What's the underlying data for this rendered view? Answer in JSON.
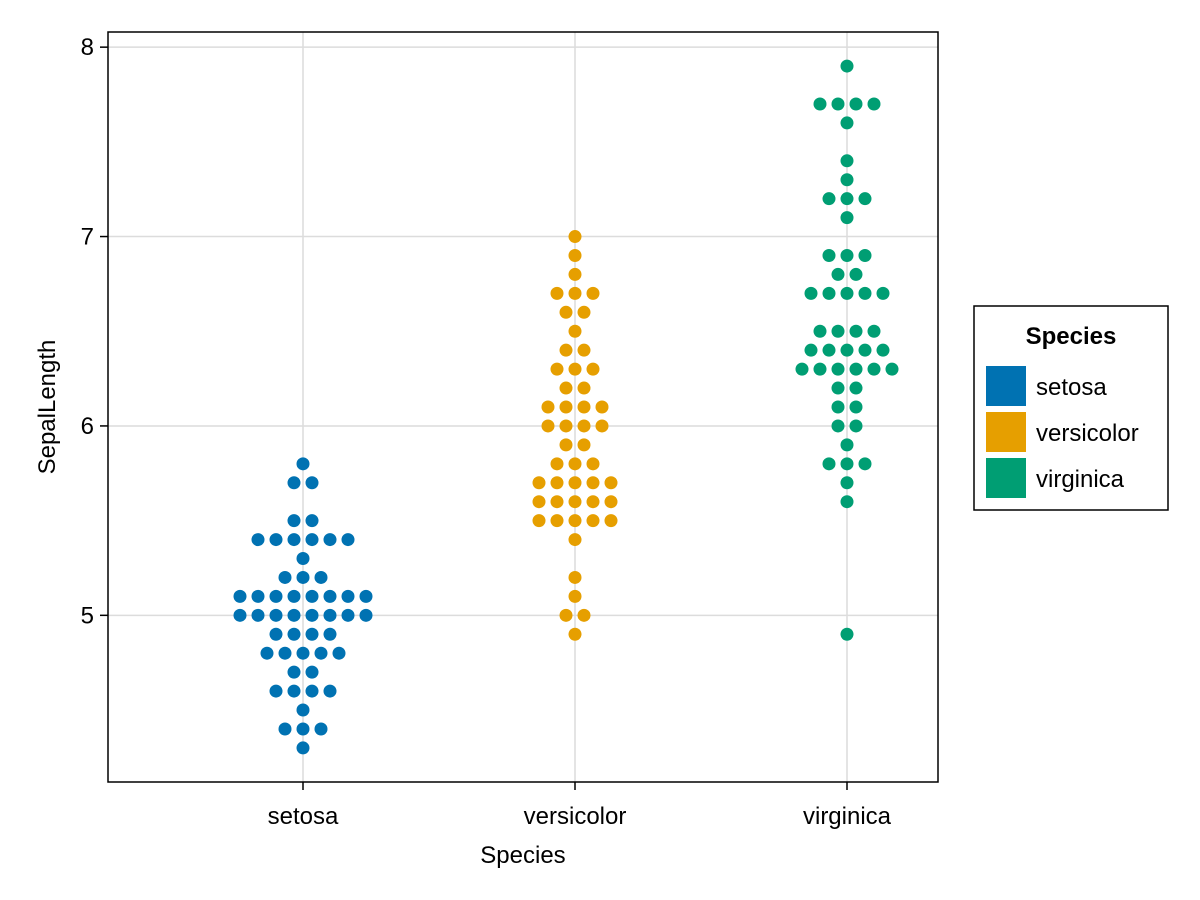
{
  "chart_data": {
    "type": "scatter",
    "subtype": "beeswarm",
    "xlabel": "Species",
    "ylabel": "SepalLength",
    "categories": [
      "setosa",
      "versicolor",
      "virginica"
    ],
    "ylim": [
      4.12,
      8.08
    ],
    "yticks": [
      5,
      6,
      7,
      8
    ],
    "grid": true,
    "legend": {
      "title": "Species",
      "placement": "right",
      "entries": [
        "setosa",
        "versicolor",
        "virginica"
      ]
    },
    "colors": {
      "setosa": "#0072b2",
      "versicolor": "#e69f00",
      "virginica": "#009e73"
    },
    "series": [
      {
        "name": "setosa",
        "category": "setosa",
        "color": "#0072b2",
        "rows": [
          {
            "y": 5.8,
            "count": 1
          },
          {
            "y": 5.7,
            "count": 2
          },
          {
            "y": 5.5,
            "count": 2
          },
          {
            "y": 5.4,
            "count": 6
          },
          {
            "y": 5.3,
            "count": 1
          },
          {
            "y": 5.2,
            "count": 3
          },
          {
            "y": 5.1,
            "count": 8
          },
          {
            "y": 5.0,
            "count": 8
          },
          {
            "y": 4.9,
            "count": 4
          },
          {
            "y": 4.8,
            "count": 5
          },
          {
            "y": 4.7,
            "count": 2
          },
          {
            "y": 4.6,
            "count": 4
          },
          {
            "y": 4.5,
            "count": 1
          },
          {
            "y": 4.4,
            "count": 3
          },
          {
            "y": 4.3,
            "count": 1
          }
        ]
      },
      {
        "name": "versicolor",
        "category": "versicolor",
        "color": "#e69f00",
        "rows": [
          {
            "y": 7.0,
            "count": 1
          },
          {
            "y": 6.9,
            "count": 1
          },
          {
            "y": 6.8,
            "count": 1
          },
          {
            "y": 6.7,
            "count": 3
          },
          {
            "y": 6.6,
            "count": 2
          },
          {
            "y": 6.5,
            "count": 1
          },
          {
            "y": 6.4,
            "count": 2
          },
          {
            "y": 6.3,
            "count": 3
          },
          {
            "y": 6.2,
            "count": 2
          },
          {
            "y": 6.1,
            "count": 4
          },
          {
            "y": 6.0,
            "count": 4
          },
          {
            "y": 5.9,
            "count": 2
          },
          {
            "y": 5.8,
            "count": 3
          },
          {
            "y": 5.7,
            "count": 5
          },
          {
            "y": 5.6,
            "count": 5
          },
          {
            "y": 5.5,
            "count": 5
          },
          {
            "y": 5.4,
            "count": 1
          },
          {
            "y": 5.2,
            "count": 1
          },
          {
            "y": 5.1,
            "count": 1
          },
          {
            "y": 5.0,
            "count": 2
          },
          {
            "y": 4.9,
            "count": 1
          }
        ]
      },
      {
        "name": "virginica",
        "category": "virginica",
        "color": "#009e73",
        "rows": [
          {
            "y": 7.9,
            "count": 1
          },
          {
            "y": 7.7,
            "count": 4
          },
          {
            "y": 7.6,
            "count": 1
          },
          {
            "y": 7.4,
            "count": 1
          },
          {
            "y": 7.3,
            "count": 1
          },
          {
            "y": 7.2,
            "count": 3
          },
          {
            "y": 7.1,
            "count": 1
          },
          {
            "y": 6.9,
            "count": 3
          },
          {
            "y": 6.8,
            "count": 2
          },
          {
            "y": 6.7,
            "count": 5
          },
          {
            "y": 6.5,
            "count": 4
          },
          {
            "y": 6.4,
            "count": 5
          },
          {
            "y": 6.3,
            "count": 6
          },
          {
            "y": 6.2,
            "count": 2
          },
          {
            "y": 6.1,
            "count": 2
          },
          {
            "y": 6.0,
            "count": 2
          },
          {
            "y": 5.9,
            "count": 1
          },
          {
            "y": 5.8,
            "count": 3
          },
          {
            "y": 5.7,
            "count": 1
          },
          {
            "y": 5.6,
            "count": 1
          },
          {
            "y": 4.9,
            "count": 1
          }
        ]
      }
    ]
  }
}
